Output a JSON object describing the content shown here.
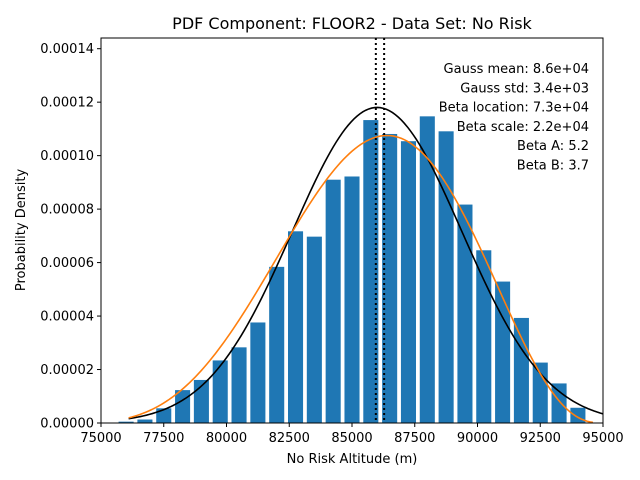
{
  "chart_data": {
    "type": "bar",
    "title": "PDF Component: FLOOR2 - Data Set: No Risk",
    "xlabel": "No Risk Altitude (m)",
    "ylabel": "Probability Density",
    "xlim": [
      75000,
      95000
    ],
    "ylim": [
      0,
      0.000144
    ],
    "xticks": [
      "75000",
      "77500",
      "80000",
      "82500",
      "85000",
      "87500",
      "90000",
      "92500",
      "95000"
    ],
    "yticks": [
      "0.00000",
      "0.00002",
      "0.00004",
      "0.00006",
      "0.00008",
      "0.00010",
      "0.00012",
      "0.00014"
    ],
    "grid": false,
    "bar_width": 600,
    "bar_color": "#1f77b4",
    "histogram": {
      "x": [
        76000,
        76750,
        77500,
        78250,
        79000,
        79750,
        80500,
        81250,
        82000,
        82750,
        83500,
        84250,
        85000,
        85750,
        86500,
        87250,
        88000,
        88750,
        89500,
        90250,
        91000,
        91750,
        92500,
        93250,
        94000
      ],
      "values": [
        5e-07,
        1.3e-06,
        5.5e-06,
        1.23e-05,
        1.61e-05,
        2.34e-05,
        2.83e-05,
        3.76e-05,
        5.84e-05,
        7.17e-05,
        6.97e-05,
        9.1e-05,
        9.22e-05,
        0.0001133,
        0.0001081,
        0.0001054,
        0.0001147,
        0.0001091,
        8.17e-05,
        6.46e-05,
        5.29e-05,
        3.93e-05,
        2.26e-05,
        1.48e-05,
        5.7e-06
      ]
    },
    "series": [
      {
        "type": "line",
        "color": "#000000",
        "mean": 86000,
        "std": 3380,
        "x_range": [
          76100,
          95000
        ]
      },
      {
        "type": "line",
        "color": "#ff7f0e",
        "loc": 73000,
        "scale": 22000,
        "a": 5.2,
        "b": 3.7,
        "x_range": [
          76100,
          94600
        ]
      }
    ],
    "vlines": [
      {
        "x": 85950,
        "color": "#000000",
        "style": "dotted"
      },
      {
        "x": 86280,
        "color": "#000000",
        "style": "dotted"
      }
    ],
    "annotations": [
      "Gauss mean: 8.6e+04",
      "Gauss std: 3.4e+03",
      "Beta location: 7.3e+04",
      "Beta scale: 2.2e+04",
      "Beta A: 5.2",
      "Beta B: 3.7"
    ]
  }
}
